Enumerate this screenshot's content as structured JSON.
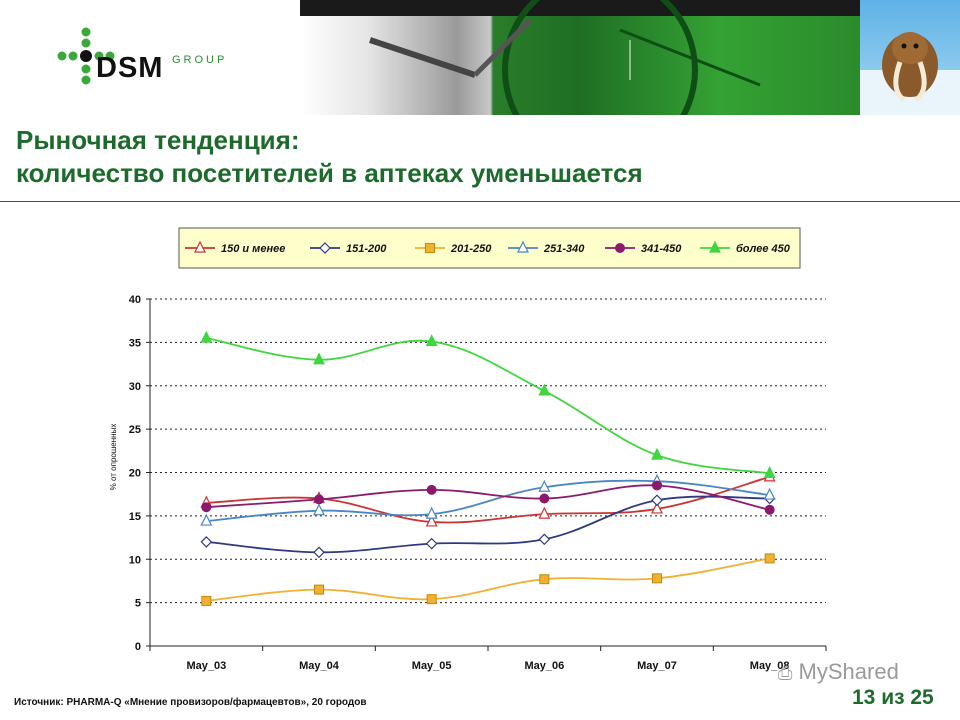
{
  "header": {
    "logo_group": "GROUP",
    "logo_name": "DSM",
    "logo_color": "#2e8b2e"
  },
  "title": {
    "line1": "Рыночная тенденция:",
    "line2": "количество посетителей в аптеках уменьшается",
    "color": "#1d6b2c"
  },
  "chart_data": {
    "type": "line",
    "categories": [
      "May_03",
      "May_04",
      "May_05",
      "May_06",
      "May_07",
      "May_08"
    ],
    "ylabel": "% от опрошенных",
    "ylim": [
      0,
      40
    ],
    "yticks": [
      0,
      5,
      10,
      15,
      20,
      25,
      30,
      35,
      40
    ],
    "grid": "horizontal dotted",
    "legend_position": "top",
    "legend_background": "#ffffcc",
    "series": [
      {
        "name": "150 и менее",
        "values": [
          16.5,
          17.0,
          14.3,
          15.2,
          15.8,
          19.5
        ],
        "color": "#cc3333",
        "marker": "triangle-open"
      },
      {
        "name": "151-200",
        "values": [
          12.0,
          10.8,
          11.8,
          12.3,
          16.8,
          17.0
        ],
        "color": "#2e3a82",
        "marker": "diamond-open"
      },
      {
        "name": "201-250",
        "values": [
          5.2,
          6.5,
          5.4,
          7.7,
          7.8,
          10.1
        ],
        "color": "#f2b030",
        "marker": "square"
      },
      {
        "name": "251-340",
        "values": [
          14.4,
          15.6,
          15.2,
          18.3,
          19.0,
          17.4
        ],
        "color": "#4a86c5",
        "marker": "triangle-open"
      },
      {
        "name": "341-450",
        "values": [
          16.0,
          16.9,
          18.0,
          17.0,
          18.5,
          15.7
        ],
        "color": "#8b1a6e",
        "marker": "circle"
      },
      {
        "name": "более 450",
        "values": [
          35.5,
          33.0,
          35.1,
          29.4,
          22.0,
          19.9
        ],
        "color": "#3fd63f",
        "marker": "triangle"
      }
    ]
  },
  "footer": {
    "source": "Источник: PHARMA-Q «Мнение провизоров/фармацевтов», 20 городов",
    "watermark": "MyShared",
    "page": "13 из 25"
  }
}
